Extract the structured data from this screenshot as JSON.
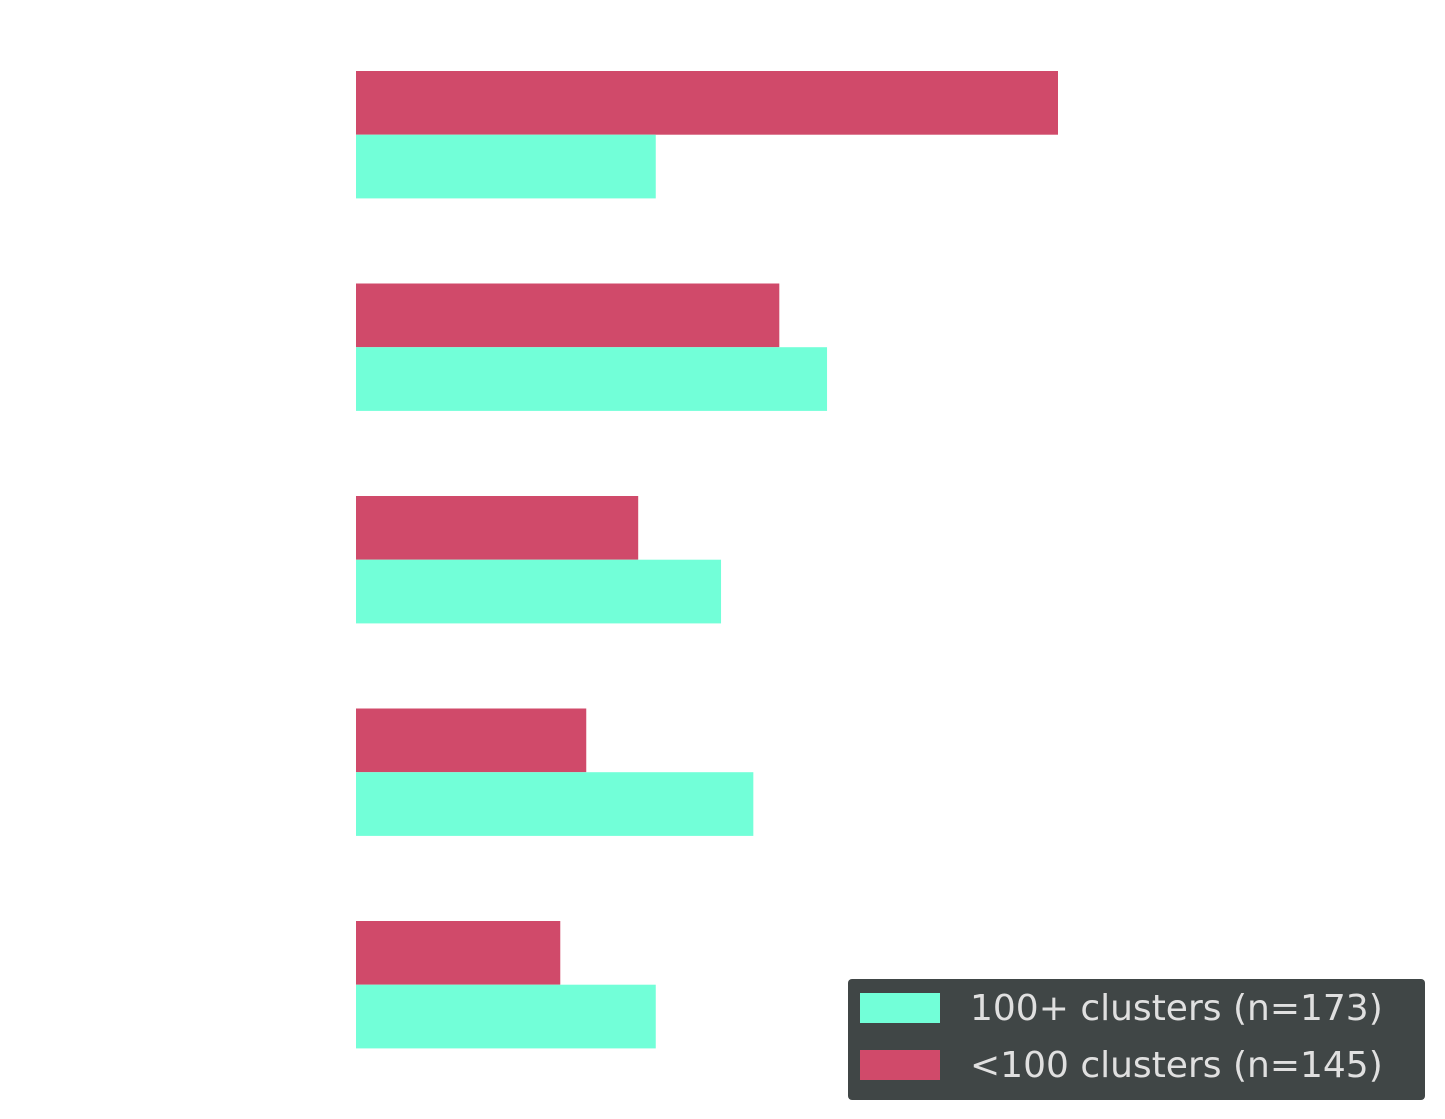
{
  "chart_data": {
    "type": "bar",
    "orientation": "horizontal",
    "title": "",
    "xlabel": "",
    "ylabel": "",
    "categories": [
      "",
      "",
      "",
      "",
      ""
    ],
    "series": [
      {
        "name": "100+ clusters (n=173)",
        "color": "#72ffd8",
        "values": [
          42.7,
          67.1,
          52.0,
          56.6,
          42.7
        ]
      },
      {
        "name": "<100 clusters (n=145)",
        "color": "#d04a6a",
        "values": [
          100,
          60.3,
          40.2,
          32.8,
          29.1
        ]
      }
    ],
    "xlim": [
      0,
      155
    ],
    "grid": false,
    "axes_visible": false,
    "legend": {
      "placement": "bottom-right",
      "background": "#404646",
      "text_color": "#e0e0e0"
    }
  }
}
